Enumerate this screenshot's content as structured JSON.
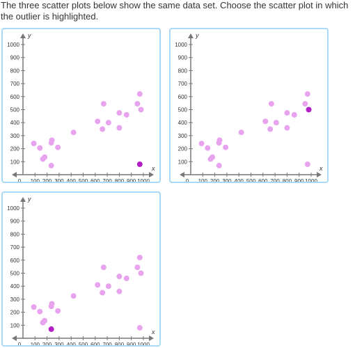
{
  "question": {
    "text": "The three scatter plots below show the same data set. Choose the scatter plot in which the outlier is highlighted."
  },
  "colors": {
    "card_border": "#a8d9f5",
    "axis": "#777777",
    "point": "#e8a3ee",
    "highlight": "#b21fc4"
  },
  "options": [
    {
      "chart_data": {
        "type": "scatter",
        "xlabel": "x",
        "ylabel": "y",
        "xlim": [
          0,
          1000
        ],
        "ylim": [
          0,
          1000
        ],
        "xticks": [
          0,
          100,
          200,
          300,
          400,
          500,
          600,
          700,
          800,
          900,
          1000
        ],
        "yticks": [
          100,
          200,
          300,
          400,
          500,
          600,
          700,
          800,
          900,
          1000
        ],
        "points": [
          {
            "x": 90,
            "y": 240
          },
          {
            "x": 140,
            "y": 205
          },
          {
            "x": 165,
            "y": 120
          },
          {
            "x": 180,
            "y": 135
          },
          {
            "x": 235,
            "y": 245
          },
          {
            "x": 240,
            "y": 265
          },
          {
            "x": 235,
            "y": 70
          },
          {
            "x": 290,
            "y": 210
          },
          {
            "x": 420,
            "y": 325
          },
          {
            "x": 620,
            "y": 410
          },
          {
            "x": 660,
            "y": 350
          },
          {
            "x": 670,
            "y": 545
          },
          {
            "x": 710,
            "y": 400
          },
          {
            "x": 800,
            "y": 360
          },
          {
            "x": 800,
            "y": 475
          },
          {
            "x": 860,
            "y": 460
          },
          {
            "x": 950,
            "y": 545
          },
          {
            "x": 970,
            "y": 620
          },
          {
            "x": 980,
            "y": 500
          },
          {
            "x": 970,
            "y": 80
          }
        ],
        "highlighted_point": 19
      }
    },
    {
      "chart_data": {
        "type": "scatter",
        "xlabel": "x",
        "ylabel": "y",
        "xlim": [
          0,
          1000
        ],
        "ylim": [
          0,
          1000
        ],
        "xticks": [
          0,
          100,
          200,
          300,
          400,
          500,
          600,
          700,
          800,
          900,
          1000
        ],
        "yticks": [
          100,
          200,
          300,
          400,
          500,
          600,
          700,
          800,
          900,
          1000
        ],
        "points": [
          {
            "x": 90,
            "y": 240
          },
          {
            "x": 140,
            "y": 205
          },
          {
            "x": 165,
            "y": 120
          },
          {
            "x": 180,
            "y": 135
          },
          {
            "x": 235,
            "y": 245
          },
          {
            "x": 240,
            "y": 265
          },
          {
            "x": 235,
            "y": 70
          },
          {
            "x": 290,
            "y": 210
          },
          {
            "x": 420,
            "y": 325
          },
          {
            "x": 620,
            "y": 410
          },
          {
            "x": 660,
            "y": 350
          },
          {
            "x": 670,
            "y": 545
          },
          {
            "x": 710,
            "y": 400
          },
          {
            "x": 800,
            "y": 360
          },
          {
            "x": 800,
            "y": 475
          },
          {
            "x": 860,
            "y": 460
          },
          {
            "x": 950,
            "y": 545
          },
          {
            "x": 970,
            "y": 620
          },
          {
            "x": 980,
            "y": 500
          },
          {
            "x": 970,
            "y": 80
          }
        ],
        "highlighted_point": 18
      }
    },
    {
      "chart_data": {
        "type": "scatter",
        "xlabel": "x",
        "ylabel": "y",
        "xlim": [
          0,
          1000
        ],
        "ylim": [
          0,
          1000
        ],
        "xticks": [
          0,
          100,
          200,
          300,
          400,
          500,
          600,
          700,
          800,
          900,
          1000
        ],
        "yticks": [
          100,
          200,
          300,
          400,
          500,
          600,
          700,
          800,
          900,
          1000
        ],
        "points": [
          {
            "x": 90,
            "y": 240
          },
          {
            "x": 140,
            "y": 205
          },
          {
            "x": 165,
            "y": 120
          },
          {
            "x": 180,
            "y": 135
          },
          {
            "x": 235,
            "y": 245
          },
          {
            "x": 240,
            "y": 265
          },
          {
            "x": 235,
            "y": 70
          },
          {
            "x": 290,
            "y": 210
          },
          {
            "x": 420,
            "y": 325
          },
          {
            "x": 620,
            "y": 410
          },
          {
            "x": 660,
            "y": 350
          },
          {
            "x": 670,
            "y": 545
          },
          {
            "x": 710,
            "y": 400
          },
          {
            "x": 800,
            "y": 360
          },
          {
            "x": 800,
            "y": 475
          },
          {
            "x": 860,
            "y": 460
          },
          {
            "x": 950,
            "y": 545
          },
          {
            "x": 970,
            "y": 620
          },
          {
            "x": 980,
            "y": 500
          },
          {
            "x": 970,
            "y": 80
          }
        ],
        "highlighted_point": 6
      }
    }
  ]
}
